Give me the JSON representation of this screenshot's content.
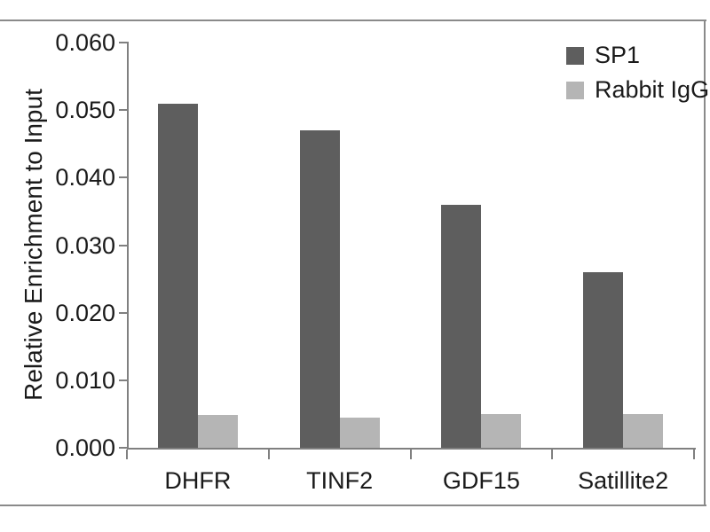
{
  "figure": {
    "background": "#ffffff",
    "frame_color": "#8a8a8a",
    "axis_color": "#808080",
    "text_color": "#1a1a1a"
  },
  "chart_data": {
    "type": "bar",
    "title": "",
    "xlabel": "",
    "ylabel": "Relative Enrichment to Input",
    "categories": [
      "DHFR",
      "TINF2",
      "GDF15",
      "Satillite2"
    ],
    "series": [
      {
        "name": "SP1",
        "color": "#5e5e5e",
        "values": [
          0.051,
          0.047,
          0.036,
          0.026
        ]
      },
      {
        "name": "Rabbit IgG",
        "color": "#b5b5b5",
        "values": [
          0.0048,
          0.0044,
          0.005,
          0.005
        ]
      }
    ],
    "ylim": [
      0,
      0.06
    ],
    "ytick_step": 0.01,
    "ytick_labels": [
      "0.000",
      "0.010",
      "0.020",
      "0.030",
      "0.040",
      "0.050",
      "0.060"
    ],
    "grid": false,
    "legend_position": "top-right"
  }
}
